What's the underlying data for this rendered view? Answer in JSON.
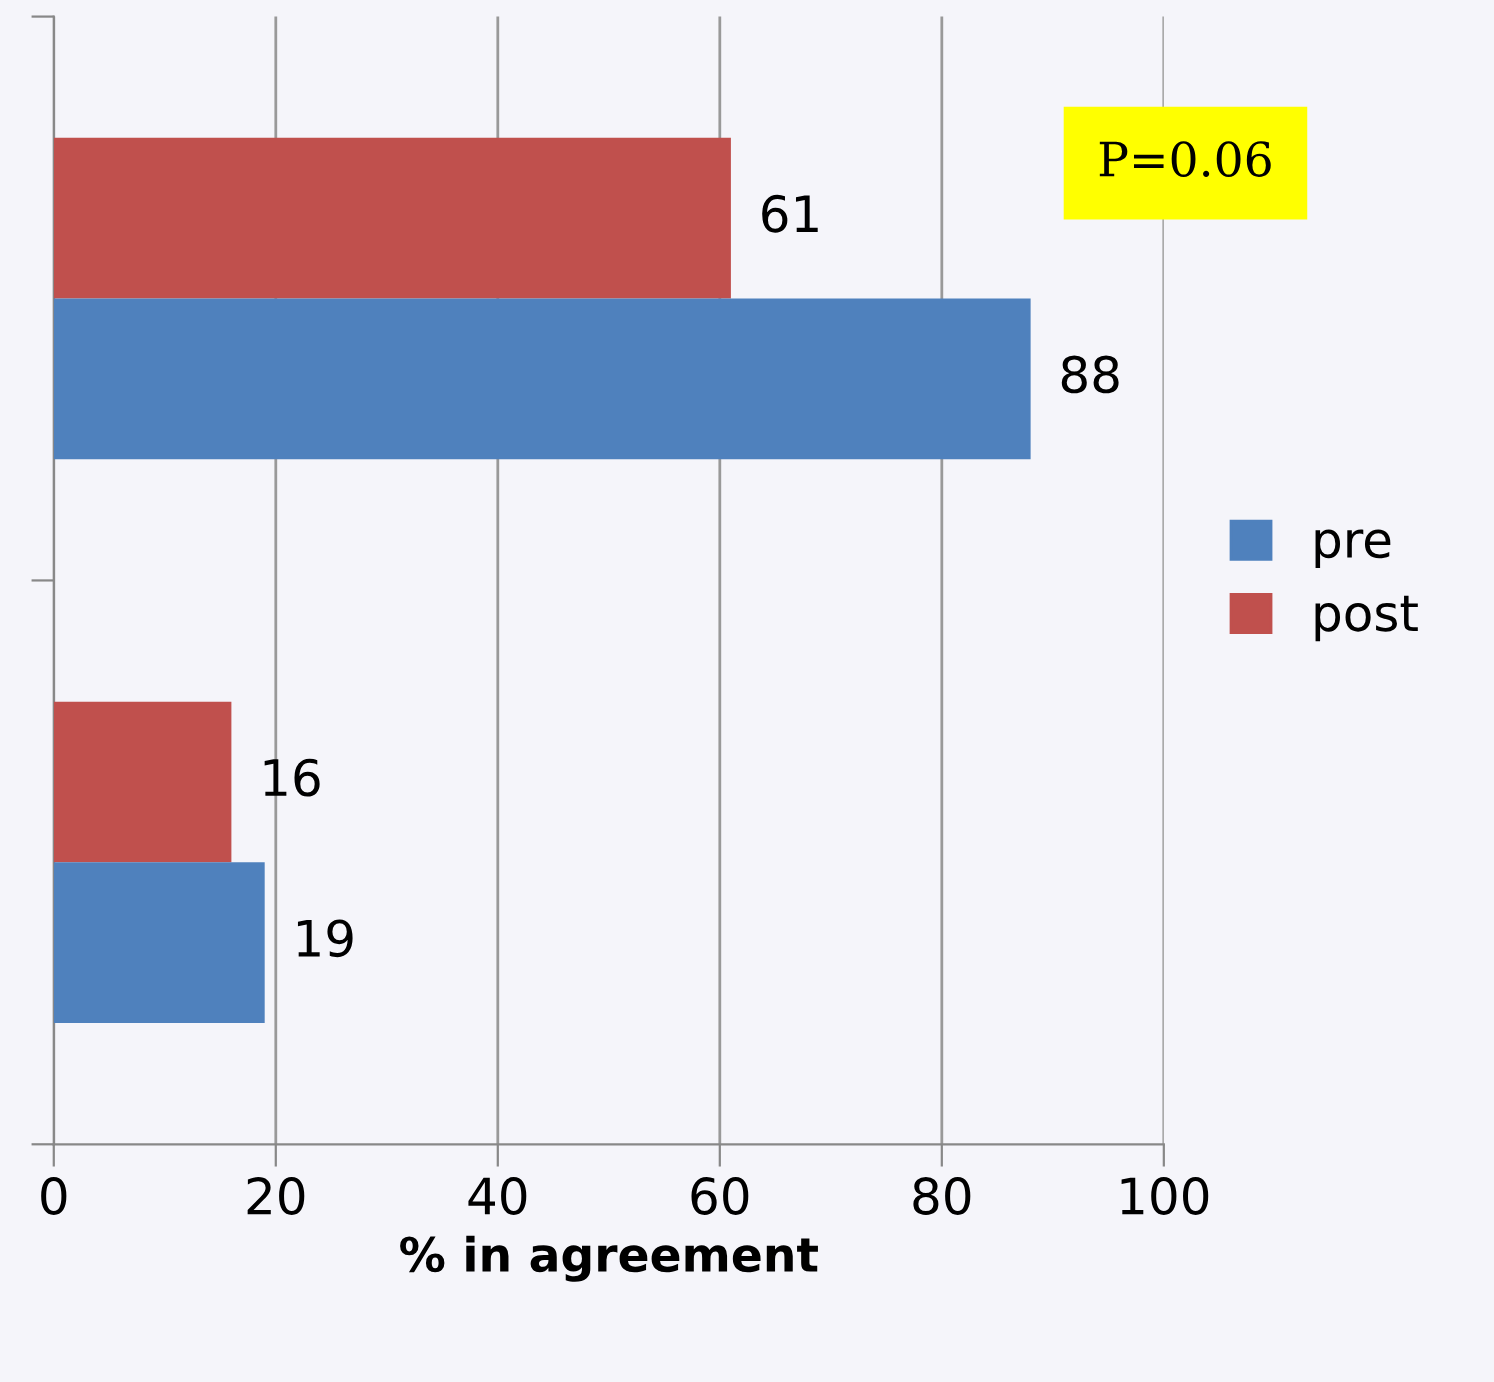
{
  "chart_data": {
    "type": "bar",
    "orientation": "horizontal",
    "xlabel": "% in agreement",
    "categories": [
      null,
      null
    ],
    "series": [
      {
        "name": "post",
        "color": "#c0504d",
        "values": [
          61,
          16
        ]
      },
      {
        "name": "pre",
        "color": "#4f81bd",
        "values": [
          88,
          19
        ]
      }
    ],
    "xlim": [
      0,
      100
    ],
    "xticks": [
      0,
      20,
      40,
      60,
      80,
      100
    ],
    "grid": "x",
    "legend": "right",
    "data_labels": true,
    "annotations": [
      "P=0.06"
    ]
  }
}
